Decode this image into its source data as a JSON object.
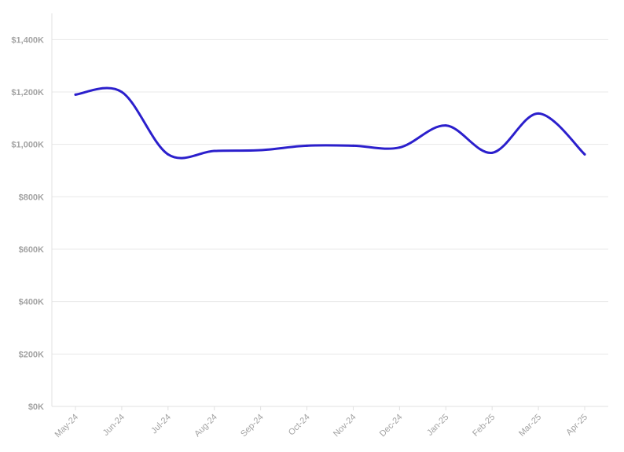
{
  "chart_data": {
    "type": "line",
    "categories": [
      "May-24",
      "Jun-24",
      "Jul-24",
      "Aug-24",
      "Sep-24",
      "Oct-24",
      "Nov-24",
      "Dec-24",
      "Jan-25",
      "Feb-25",
      "Mar-25",
      "Apr-25"
    ],
    "series": [
      {
        "values": [
          1190,
          1200,
          962,
          975,
          978,
          995,
          995,
          988,
          1072,
          968,
          1118,
          962
        ],
        "color": "#2b1fcc"
      }
    ],
    "yticks": [
      "$0K",
      "$200K",
      "$400K",
      "$600K",
      "$800K",
      "$1,000K",
      "$1,200K",
      "$1,400K"
    ],
    "ylim": [
      0,
      1500
    ],
    "ytick_step": 200,
    "grid": true,
    "legend": "none",
    "title": "",
    "xlabel": "",
    "ylabel": ""
  }
}
